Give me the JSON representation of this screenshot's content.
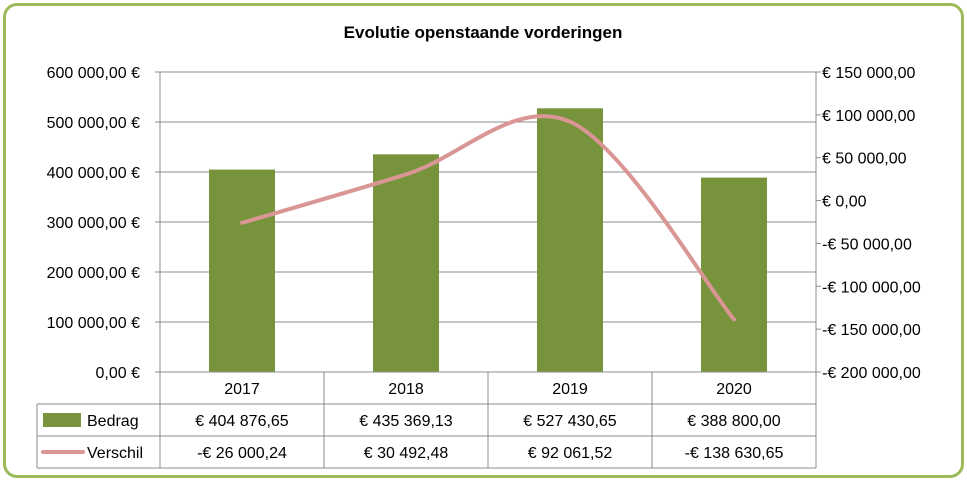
{
  "chart_data": {
    "type": "bar",
    "title": "Evolutie openstaande vorderingen",
    "categories": [
      "2017",
      "2018",
      "2019",
      "2020"
    ],
    "series": [
      {
        "name": "Bedrag",
        "type": "bar",
        "axis": "left",
        "color": "#77933c",
        "values": [
          404876.65,
          435369.13,
          527430.65,
          388800.0
        ],
        "labels": [
          "€ 404 876,65",
          "€ 435 369,13",
          "€ 527 430,65",
          "€ 388 800,00"
        ]
      },
      {
        "name": "Verschil",
        "type": "line",
        "axis": "right",
        "color": "#d99694",
        "values": [
          -26000.24,
          30492.48,
          92061.52,
          -138630.65
        ],
        "labels": [
          "-€ 26 000,24",
          "€ 30 492,48",
          "€ 92 061,52",
          "-€ 138 630,65"
        ]
      }
    ],
    "y_left": {
      "range": [
        0,
        600000
      ],
      "ticks": [
        0,
        100000,
        200000,
        300000,
        400000,
        500000,
        600000
      ],
      "tick_labels": [
        "0,00 €",
        "100 000,00 €",
        "200 000,00 €",
        "300 000,00 €",
        "400 000,00 €",
        "500 000,00 €",
        "600 000,00 €"
      ]
    },
    "y_right": {
      "range": [
        -200000,
        150000
      ],
      "ticks": [
        -200000,
        -150000,
        -100000,
        -50000,
        0,
        50000,
        100000,
        150000
      ],
      "tick_labels": [
        "-€ 200 000,00",
        "-€ 150 000,00",
        "-€ 100 000,00",
        "-€ 50 000,00",
        "€  0,00",
        "€ 50 000,00",
        "€ 100 000,00",
        "€ 150 000,00"
      ]
    },
    "grid": true,
    "legend": "data-table"
  }
}
